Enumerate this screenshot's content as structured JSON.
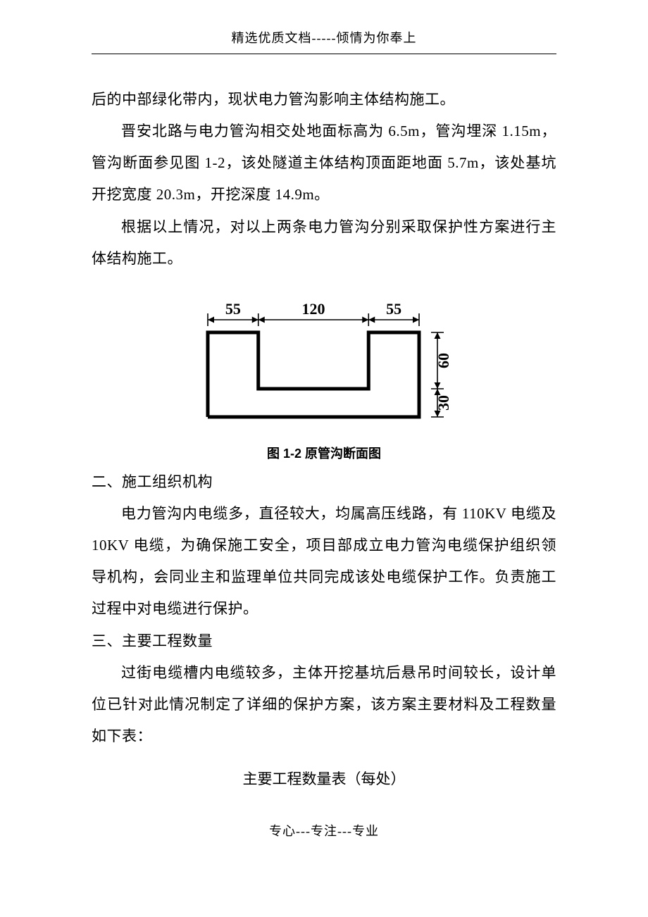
{
  "header": "精选优质文档-----倾情为你奉上",
  "footer": "专心---专注---专业",
  "p_cont": "后的中部绿化带内，现状电力管沟影响主体结构施工。",
  "p1": "晋安北路与电力管沟相交处地面标高为 6.5m，管沟埋深 1.15m，管沟断面参见图 1-2，该处隧道主体结构顶面距地面 5.7m，该处基坑开挖宽度 20.3m，开挖深度 14.9m。",
  "p2": "根据以上情况，对以上两条电力管沟分别采取保护性方案进行主体结构施工。",
  "figure": {
    "caption": "图 1-2  原管沟断面图",
    "dims": {
      "top_left": "55",
      "top_mid": "120",
      "top_right": "55",
      "right_top": "60",
      "right_bot": "30"
    },
    "stroke": "#000000",
    "stroke_width_shape": 5,
    "stroke_width_dim": 1.6,
    "font_size": 22
  },
  "h2_1": "二、施工组织机构",
  "p3": "电力管沟内电缆多，直径较大，均属高压线路，有 110KV 电缆及 10KV 电缆，为确保施工安全，项目部成立电力管沟电缆保护组织领导机构，会同业主和监理单位共同完成该处电缆保护工作。负责施工过程中对电缆进行保护。",
  "h2_2": "三、主要工程数量",
  "p4": "过街电缆槽内电缆较多，主体开挖基坑后悬吊时间较长，设计单位已针对此情况制定了详细的保护方案，该方案主要材料及工程数量如下表：",
  "table_title": "主要工程数量表（每处）"
}
